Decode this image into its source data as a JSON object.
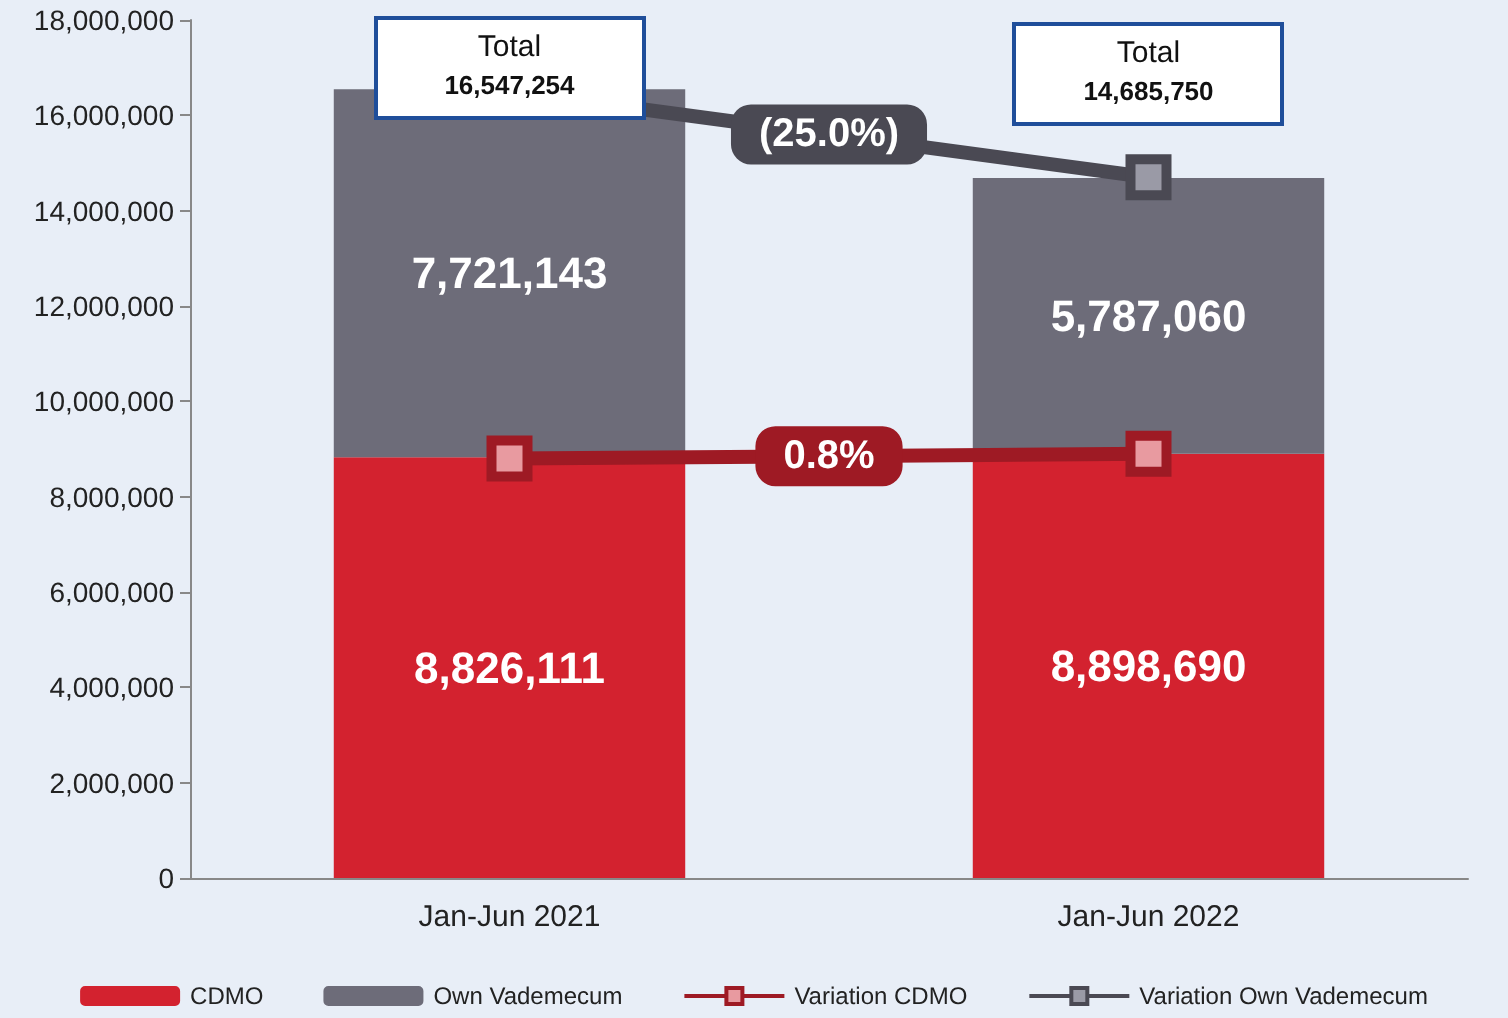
{
  "chart_data": {
    "type": "bar",
    "stacked": true,
    "categories": [
      "Jan-Jun 2021",
      "Jan-Jun 2022"
    ],
    "series": [
      {
        "name": "CDMO",
        "color": "#d3222f",
        "values": [
          8826111,
          8898690
        ],
        "value_labels": [
          "8,826,111",
          "8,898,690"
        ]
      },
      {
        "name": "Own Vademecum",
        "color": "#6d6c79",
        "values": [
          7721143,
          5787060
        ],
        "value_labels": [
          "7,721,143",
          "5,787,060"
        ]
      },
      {
        "name": "Variation CDMO",
        "type": "line",
        "color": "#9e1a24",
        "values": [
          8800000,
          8900000
        ]
      },
      {
        "name": "Variation Own Vademecum",
        "type": "line",
        "color": "#4a4953",
        "values": [
          16500000,
          14700000
        ]
      }
    ],
    "totals": [
      "16,547,254",
      "14,685,750"
    ],
    "annotations": [
      "Total",
      "Total",
      {
        "text": "(25.0%)",
        "y": 15600000
      },
      {
        "text": "0.8%",
        "y": 8850000
      }
    ],
    "ylim": [
      0,
      18000000
    ],
    "yticks": [
      {
        "value": 0,
        "label": "0"
      },
      {
        "value": 2000000,
        "label": "2,000,000"
      },
      {
        "value": 4000000,
        "label": "4,000,000"
      },
      {
        "value": 6000000,
        "label": "6,000,000"
      },
      {
        "value": 8000000,
        "label": "8,000,000"
      },
      {
        "value": 10000000,
        "label": "10,000,000"
      },
      {
        "value": 12000000,
        "label": "12,000,000"
      },
      {
        "value": 14000000,
        "label": "14,000,000"
      },
      {
        "value": 16000000,
        "label": "16,000,000"
      },
      {
        "value": 18000000,
        "label": "18,000,000"
      }
    ],
    "legend": "bottom",
    "marker": "square"
  }
}
